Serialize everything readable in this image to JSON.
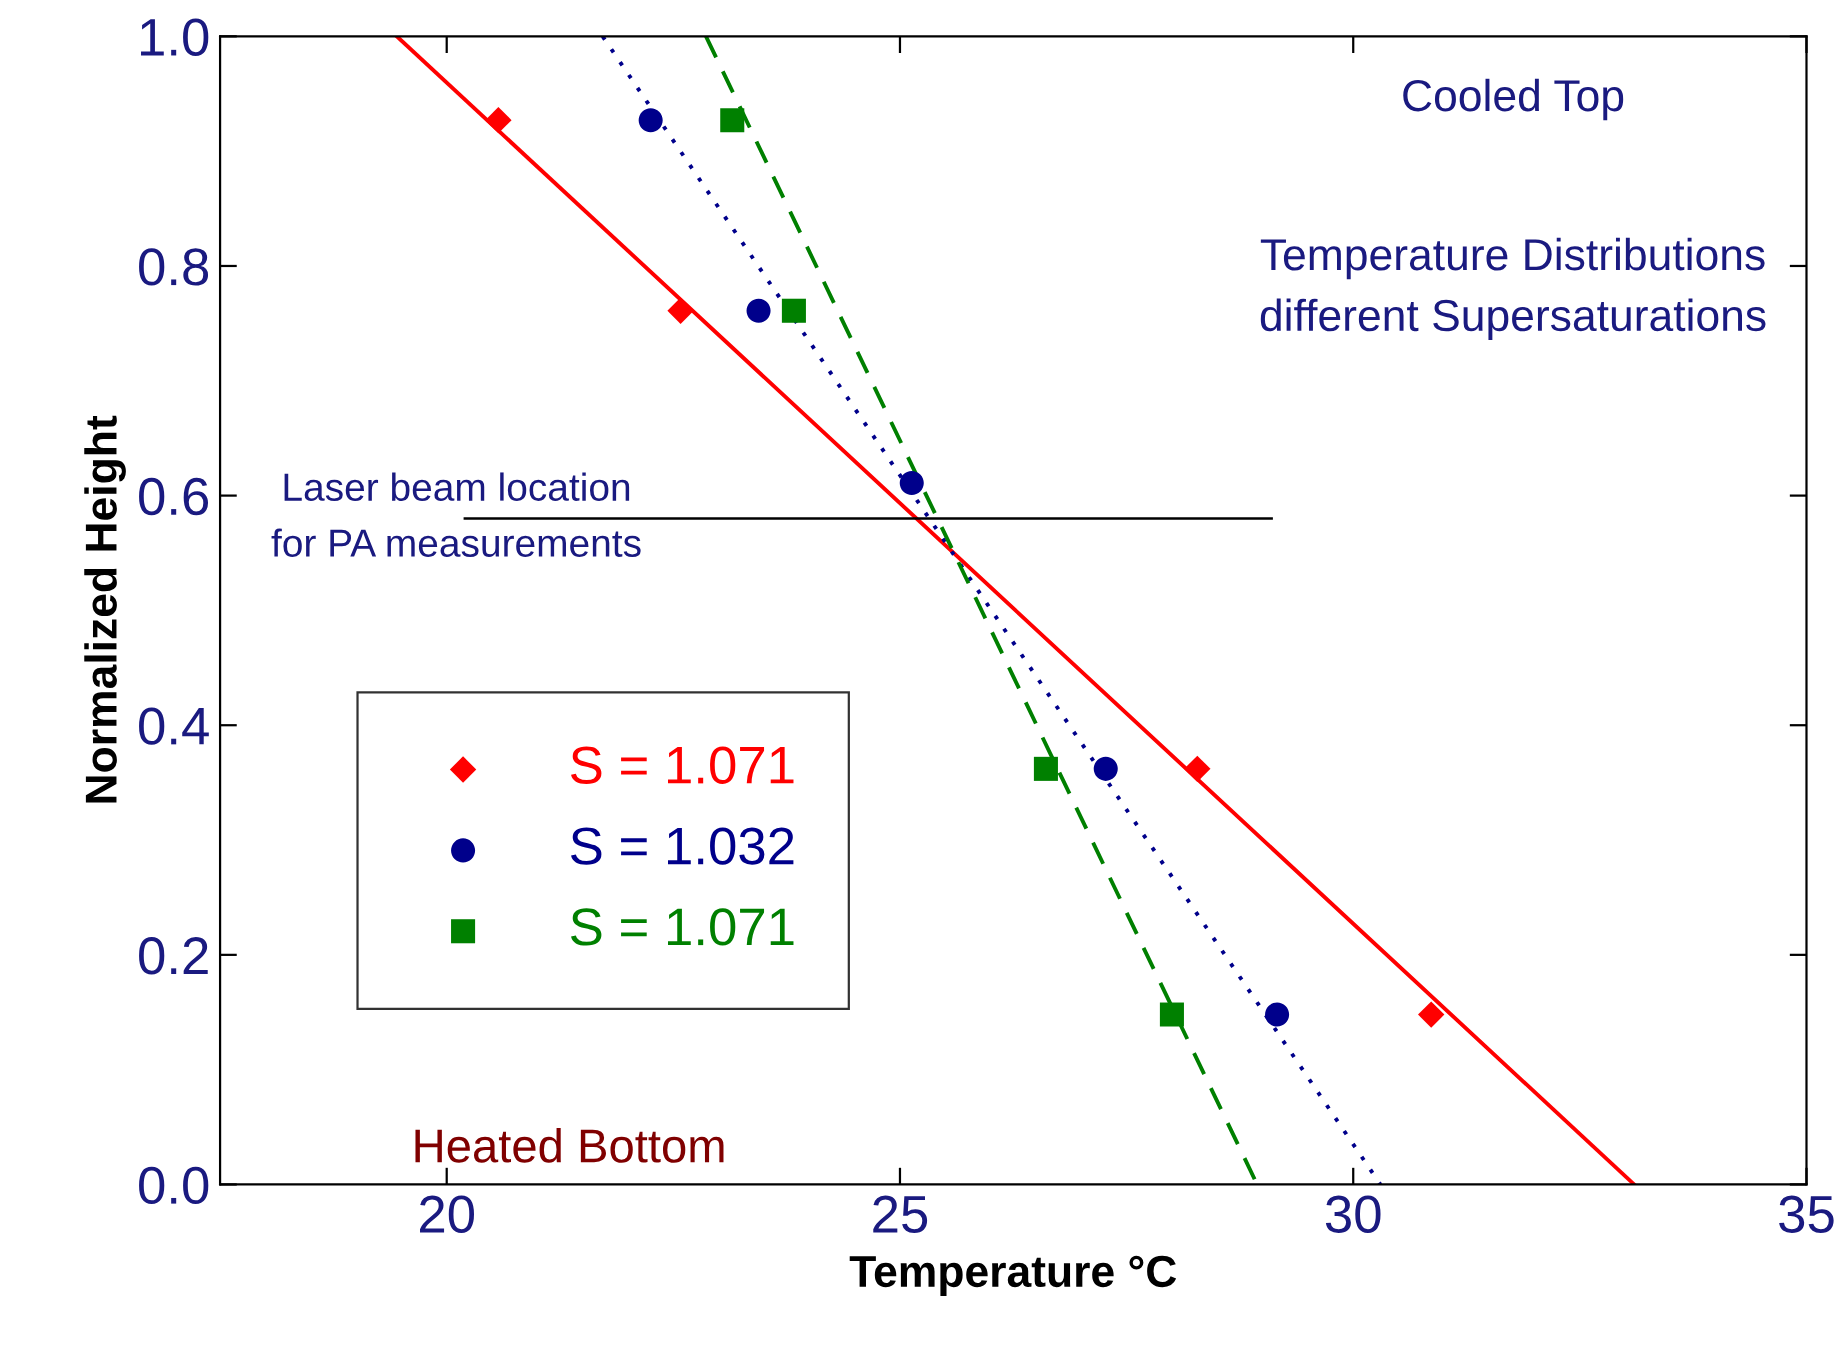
{
  "chart_data": {
    "type": "scatter",
    "xlabel": "Temperature °C",
    "ylabel": "Normalized Height",
    "xlim": [
      17.5,
      35
    ],
    "ylim": [
      0,
      1
    ],
    "xticks": [
      20,
      25,
      30,
      35
    ],
    "yticks": [
      {
        "value": 0,
        "label": "0.0"
      },
      {
        "value": 0.2,
        "label": "0.2"
      },
      {
        "value": 0.4,
        "label": "0.4"
      },
      {
        "value": 0.6,
        "label": "0.6"
      },
      {
        "value": 0.8,
        "label": "0.8"
      },
      {
        "value": 1,
        "label": "1.0"
      }
    ],
    "grid": false,
    "legend": "bottom left",
    "series": [
      {
        "name": "S = 1.071",
        "marker": "diamond",
        "color": "#ff0000",
        "x": [
          20.57,
          22.58,
          25.13,
          28.28,
          30.86
        ],
        "values": [
          0.927,
          0.761,
          null,
          0.362,
          0.148
        ]
      },
      {
        "name": "S = 1.032",
        "marker": "circle",
        "color": "#00008b",
        "x": [
          22.25,
          23.44,
          25.13,
          27.27,
          29.16
        ],
        "values": [
          0.927,
          0.761,
          0.611,
          0.362,
          0.148
        ]
      },
      {
        "name": "S = 1.071",
        "marker": "square",
        "color": "#008000",
        "x": [
          23.15,
          23.83,
          25.13,
          26.61,
          28.0
        ],
        "values": [
          0.927,
          0.761,
          null,
          0.362,
          0.148
        ]
      },
      {
        "type": "line",
        "line_style": "solid",
        "color": "#ff0000",
        "x": [
          19.45,
          33.1
        ],
        "values": [
          1.0,
          0.0
        ]
      },
      {
        "type": "line",
        "line_style": "dotted",
        "color": "#00008b",
        "x": [
          21.72,
          30.3
        ],
        "values": [
          1.0,
          0.0
        ]
      },
      {
        "type": "line",
        "line_style": "dashed",
        "color": "#008000",
        "x": [
          22.86,
          28.94
        ],
        "values": [
          1.0,
          0.0
        ]
      },
      {
        "type": "line",
        "line_style": "solid",
        "color": "#000000",
        "x": [
          20.2,
          29.1
        ],
        "values": [
          0.58,
          0.58
        ]
      }
    ],
    "annotations": [
      {
        "text": "Laser beam location\nfor PA measurements",
        "x": 20.2,
        "y": 0.58
      },
      "Cooled Top",
      "Temperature Distributions\ndifferent Supersaturations",
      "Heated Bottom"
    ]
  }
}
